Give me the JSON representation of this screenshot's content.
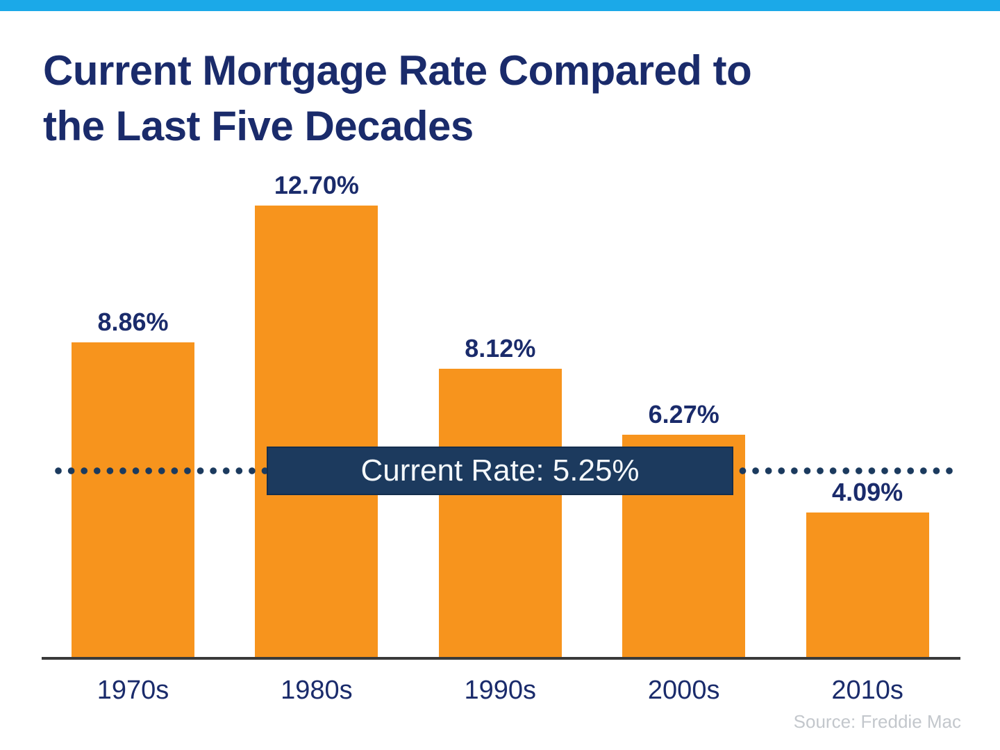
{
  "page": {
    "title_line1": "Current Mortgage Rate Compared to",
    "title_line2": "the Last Five Decades",
    "source_note": "Source: Freddie Mac"
  },
  "current_rate": {
    "label": "Current Rate: 5.25%",
    "value": 5.25
  },
  "colors": {
    "top_bar": "#1BA9E8",
    "bar": "#F7941D",
    "navy_text": "#1A2B6B",
    "rate_box_bg": "#1C3A5E",
    "rate_box_border": "#142E4D",
    "dotted_line": "#1B3A5E",
    "axis_line": "#3A3A3A",
    "source_text": "#C3C7CC"
  },
  "chart_data": {
    "type": "bar",
    "title": "Current Mortgage Rate Compared to the Last Five Decades",
    "categories": [
      "1970s",
      "1980s",
      "1990s",
      "2000s",
      "2010s"
    ],
    "values": [
      8.86,
      12.7,
      8.12,
      6.27,
      4.09
    ],
    "value_labels": [
      "8.86%",
      "12.70%",
      "8.12%",
      "6.27%",
      "4.09%"
    ],
    "xlabel": "",
    "ylabel": "",
    "ylim": [
      0,
      13
    ],
    "grid": false,
    "legend": "none",
    "bar_color": "#F7941D",
    "annotation": {
      "type": "dotted-horizontal-line-with-label",
      "label": "Current Rate: 5.25%",
      "y": 5.25
    },
    "source": "Freddie Mac"
  }
}
